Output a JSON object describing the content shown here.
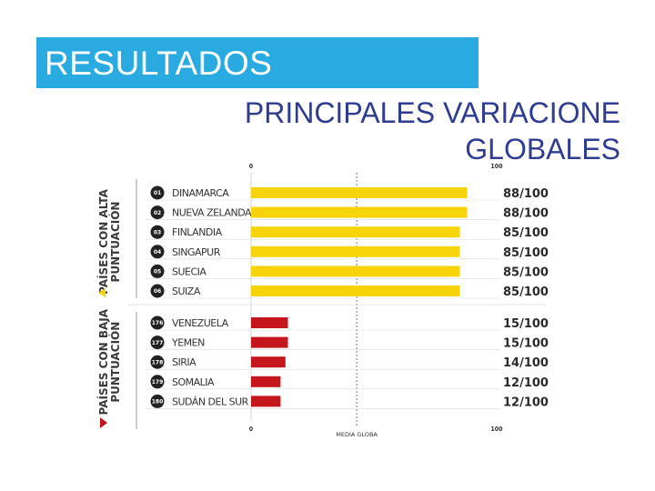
{
  "header": {
    "title": "RESULTADOS",
    "subtitle_line1": "PRINCIPALES VARIACIONE",
    "subtitle_line2": "GLOBALES"
  },
  "colors": {
    "title_bg": "#29abe2",
    "subtitle": "#2e3d91",
    "high_bar": "#f7d40a",
    "low_bar": "#c4161c"
  },
  "chart_data": {
    "type": "bar",
    "orientation": "horizontal",
    "xlim": [
      0,
      100
    ],
    "x_ticks": [
      "0",
      "100"
    ],
    "average_label": "MEDIA GLOBA",
    "average_value": 43,
    "groups": [
      {
        "label_line1": "PAÍSES CON ALTA",
        "label_line2": "PUNTUACIÓN",
        "color": "#f7d40a",
        "rows": [
          {
            "rank": "01",
            "country": "DINAMARCA",
            "value": 88,
            "score_main": "88",
            "score_suffix": "/100"
          },
          {
            "rank": "02",
            "country": "NUEVA ZELANDA",
            "value": 88,
            "score_main": "88",
            "score_suffix": "/100"
          },
          {
            "rank": "03",
            "country": "FINLANDIA",
            "value": 85,
            "score_main": "85",
            "score_suffix": "/100"
          },
          {
            "rank": "04",
            "country": "SINGAPUR",
            "value": 85,
            "score_main": "85",
            "score_suffix": "/100"
          },
          {
            "rank": "05",
            "country": "SUECIA",
            "value": 85,
            "score_main": "85",
            "score_suffix": "/100"
          },
          {
            "rank": "06",
            "country": "SUIZA",
            "value": 85,
            "score_main": "85",
            "score_suffix": "/100"
          }
        ]
      },
      {
        "label_line1": "PAÍSES CON BAJA",
        "label_line2": "PUNTUACIÓN",
        "color": "#c4161c",
        "rows": [
          {
            "rank": "176",
            "country": "VENEZUELA",
            "value": 15,
            "score_main": "15",
            "score_suffix": "/100"
          },
          {
            "rank": "177",
            "country": "YEMEN",
            "value": 15,
            "score_main": "15",
            "score_suffix": "/100"
          },
          {
            "rank": "178",
            "country": "SIRIA",
            "value": 14,
            "score_main": "14",
            "score_suffix": "/100"
          },
          {
            "rank": "179",
            "country": "SOMALIA",
            "value": 12,
            "score_main": "12",
            "score_suffix": "/100"
          },
          {
            "rank": "180",
            "country": "SUDÁN DEL SUR",
            "value": 12,
            "score_main": "12",
            "score_suffix": "/100"
          }
        ]
      }
    ]
  }
}
